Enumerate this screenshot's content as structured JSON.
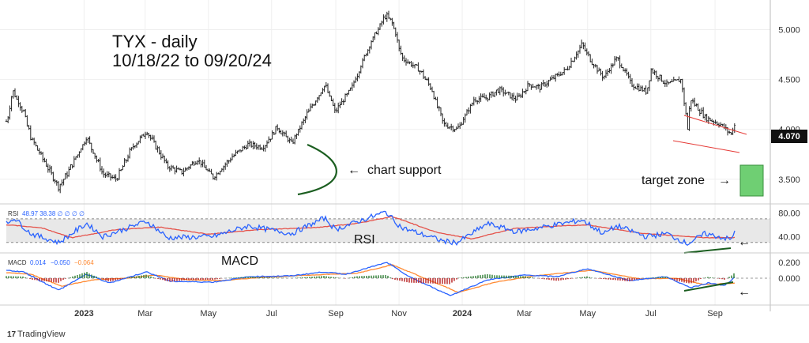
{
  "chart_data": {
    "type": "ohlc",
    "title": "TYX - daily",
    "subtitle": "10/18/22 to 09/20/24",
    "price_axis": {
      "ylim": [
        3.3,
        5.25
      ],
      "ticks": [
        "5.000",
        "4.500",
        "4.000",
        "3.500"
      ],
      "last": "4.070"
    },
    "x_ticks": [
      "2023",
      "Mar",
      "May",
      "Jul",
      "Sep",
      "Nov",
      "2024",
      "Mar",
      "May",
      "Jul",
      "Sep"
    ],
    "x_ticks_bold": [
      "2023",
      "2024"
    ],
    "price_path": [
      [
        "2022-10-18",
        4.08
      ],
      [
        "2022-10-24",
        4.38
      ],
      [
        "2022-11-03",
        4.18
      ],
      [
        "2022-11-10",
        3.92
      ],
      [
        "2022-11-22",
        3.7
      ],
      [
        "2022-12-07",
        3.42
      ],
      [
        "2022-12-15",
        3.55
      ],
      [
        "2023-01-03",
        3.92
      ],
      [
        "2023-01-19",
        3.55
      ],
      [
        "2023-02-01",
        3.5
      ],
      [
        "2023-02-16",
        3.82
      ],
      [
        "2023-03-02",
        3.98
      ],
      [
        "2023-03-22",
        3.63
      ],
      [
        "2023-04-05",
        3.57
      ],
      [
        "2023-04-20",
        3.7
      ],
      [
        "2023-05-05",
        3.52
      ],
      [
        "2023-05-25",
        3.74
      ],
      [
        "2023-06-08",
        3.85
      ],
      [
        "2023-06-22",
        3.82
      ],
      [
        "2023-07-06",
        4.02
      ],
      [
        "2023-07-20",
        3.86
      ],
      [
        "2023-08-04",
        4.16
      ],
      [
        "2023-08-21",
        4.45
      ],
      [
        "2023-08-31",
        4.18
      ],
      [
        "2023-09-15",
        4.4
      ],
      [
        "2023-10-03",
        4.85
      ],
      [
        "2023-10-19",
        5.15
      ],
      [
        "2023-10-26",
        5.05
      ],
      [
        "2023-11-03",
        4.72
      ],
      [
        "2023-11-20",
        4.6
      ],
      [
        "2023-12-01",
        4.42
      ],
      [
        "2023-12-14",
        4.05
      ],
      [
        "2023-12-27",
        4.0
      ],
      [
        "2024-01-12",
        4.3
      ],
      [
        "2024-01-25",
        4.32
      ],
      [
        "2024-02-05",
        4.4
      ],
      [
        "2024-02-22",
        4.3
      ],
      [
        "2024-03-05",
        4.45
      ],
      [
        "2024-03-15",
        4.42
      ],
      [
        "2024-04-10",
        4.6
      ],
      [
        "2024-04-25",
        4.85
      ],
      [
        "2024-05-03",
        4.7
      ],
      [
        "2024-05-16",
        4.52
      ],
      [
        "2024-05-29",
        4.72
      ],
      [
        "2024-06-12",
        4.45
      ],
      [
        "2024-06-26",
        4.38
      ],
      [
        "2024-07-01",
        4.6
      ],
      [
        "2024-07-16",
        4.45
      ],
      [
        "2024-07-30",
        4.5
      ],
      [
        "2024-08-05",
        4.0
      ],
      [
        "2024-08-08",
        4.3
      ],
      [
        "2024-08-22",
        4.12
      ],
      [
        "2024-09-06",
        4.05
      ],
      [
        "2024-09-16",
        3.95
      ],
      [
        "2024-09-20",
        4.07
      ]
    ],
    "rsi": {
      "label": "RSI",
      "values_text": "48.97  38.38  ∅ ∅ ∅ ∅",
      "ylim": [
        15,
        90
      ],
      "ticks": [
        "80.00",
        "40.00"
      ],
      "band": [
        30,
        70
      ],
      "path": [
        [
          "2022-10-18",
          62
        ],
        [
          "2022-10-25",
          72
        ],
        [
          "2022-11-10",
          45
        ],
        [
          "2022-12-07",
          30
        ],
        [
          "2023-01-03",
          62
        ],
        [
          "2023-01-19",
          40
        ],
        [
          "2023-03-02",
          66
        ],
        [
          "2023-03-22",
          38
        ],
        [
          "2023-05-05",
          40
        ],
        [
          "2023-06-08",
          58
        ],
        [
          "2023-07-20",
          45
        ],
        [
          "2023-08-21",
          72
        ],
        [
          "2023-08-31",
          52
        ],
        [
          "2023-10-19",
          82
        ],
        [
          "2023-11-03",
          55
        ],
        [
          "2023-12-14",
          32
        ],
        [
          "2023-12-27",
          30
        ],
        [
          "2024-01-25",
          62
        ],
        [
          "2024-02-22",
          48
        ],
        [
          "2024-04-25",
          68
        ],
        [
          "2024-05-16",
          45
        ],
        [
          "2024-05-29",
          58
        ],
        [
          "2024-06-26",
          40
        ],
        [
          "2024-07-16",
          45
        ],
        [
          "2024-08-05",
          28
        ],
        [
          "2024-08-22",
          45
        ],
        [
          "2024-09-16",
          35
        ],
        [
          "2024-09-20",
          48.97
        ]
      ],
      "ma_path": [
        [
          "2022-10-18",
          60
        ],
        [
          "2022-11-20",
          55
        ],
        [
          "2022-12-20",
          38
        ],
        [
          "2023-02-01",
          52
        ],
        [
          "2023-03-15",
          56
        ],
        [
          "2023-05-01",
          44
        ],
        [
          "2023-06-20",
          52
        ],
        [
          "2023-08-10",
          55
        ],
        [
          "2023-09-20",
          62
        ],
        [
          "2023-10-25",
          74
        ],
        [
          "2023-12-05",
          48
        ],
        [
          "2024-01-10",
          36
        ],
        [
          "2024-02-20",
          54
        ],
        [
          "2024-04-30",
          60
        ],
        [
          "2024-06-20",
          46
        ],
        [
          "2024-08-20",
          38
        ],
        [
          "2024-09-20",
          38.38
        ]
      ]
    },
    "macd": {
      "label": "MACD",
      "values_text": [
        "0.014",
        "−0.050",
        "−0.064"
      ],
      "ylim": [
        -0.32,
        0.28
      ],
      "ticks": [
        "0.200",
        "0.000"
      ],
      "macd_path": [
        [
          "2022-10-18",
          0.1
        ],
        [
          "2022-11-03",
          0.08
        ],
        [
          "2022-11-22",
          -0.05
        ],
        [
          "2022-12-07",
          -0.15
        ],
        [
          "2023-01-03",
          0.05
        ],
        [
          "2023-01-25",
          -0.06
        ],
        [
          "2023-03-02",
          0.08
        ],
        [
          "2023-03-25",
          -0.04
        ],
        [
          "2023-05-05",
          -0.05
        ],
        [
          "2023-06-10",
          0.02
        ],
        [
          "2023-07-20",
          0.03
        ],
        [
          "2023-08-20",
          0.08
        ],
        [
          "2023-09-10",
          0.05
        ],
        [
          "2023-10-20",
          0.2
        ],
        [
          "2023-11-10",
          0.02
        ],
        [
          "2023-12-20",
          -0.22
        ],
        [
          "2024-01-25",
          -0.02
        ],
        [
          "2024-03-01",
          0.04
        ],
        [
          "2024-04-01",
          0.02
        ],
        [
          "2024-04-30",
          0.12
        ],
        [
          "2024-06-10",
          -0.03
        ],
        [
          "2024-07-15",
          0.02
        ],
        [
          "2024-08-08",
          -0.12
        ],
        [
          "2024-08-25",
          -0.06
        ],
        [
          "2024-09-10",
          -0.09
        ],
        [
          "2024-09-20",
          0.014
        ]
      ],
      "signal_path": [
        [
          "2022-10-18",
          0.07
        ],
        [
          "2022-11-10",
          0.05
        ],
        [
          "2022-12-10",
          -0.1
        ],
        [
          "2023-01-10",
          -0.02
        ],
        [
          "2023-02-10",
          0.0
        ],
        [
          "2023-03-10",
          0.04
        ],
        [
          "2023-04-10",
          -0.02
        ],
        [
          "2023-05-15",
          -0.03
        ],
        [
          "2023-06-20",
          0.01
        ],
        [
          "2023-08-25",
          0.05
        ],
        [
          "2023-09-20",
          0.06
        ],
        [
          "2023-10-25",
          0.17
        ],
        [
          "2023-11-25",
          0.0
        ],
        [
          "2023-12-28",
          -0.18
        ],
        [
          "2024-02-01",
          -0.05
        ],
        [
          "2024-03-10",
          0.03
        ],
        [
          "2024-05-05",
          0.1
        ],
        [
          "2024-06-20",
          -0.01
        ],
        [
          "2024-07-25",
          0.0
        ],
        [
          "2024-08-20",
          -0.08
        ],
        [
          "2024-09-20",
          -0.064
        ]
      ]
    },
    "annotations": {
      "chart_support": "chart support",
      "target_zone": "target zone",
      "rsi_tag": "RSI",
      "macd_tag": "MACD",
      "left_arrow": "←",
      "right_arrow": "→"
    },
    "colors": {
      "bars": "#222222",
      "rsi": "#2962ff",
      "rsi_ma": "#e5534b",
      "macd": "#2962ff",
      "signal": "#ff8a33",
      "hist_up": "#2e7d32",
      "hist_down": "#b71c1c",
      "support": "#1b5e20",
      "target": "#6fcf73",
      "channel": "#e53935",
      "divergence": "#1b5e20",
      "last_price_bg": "#111111"
    }
  },
  "watermark": "TradingView"
}
